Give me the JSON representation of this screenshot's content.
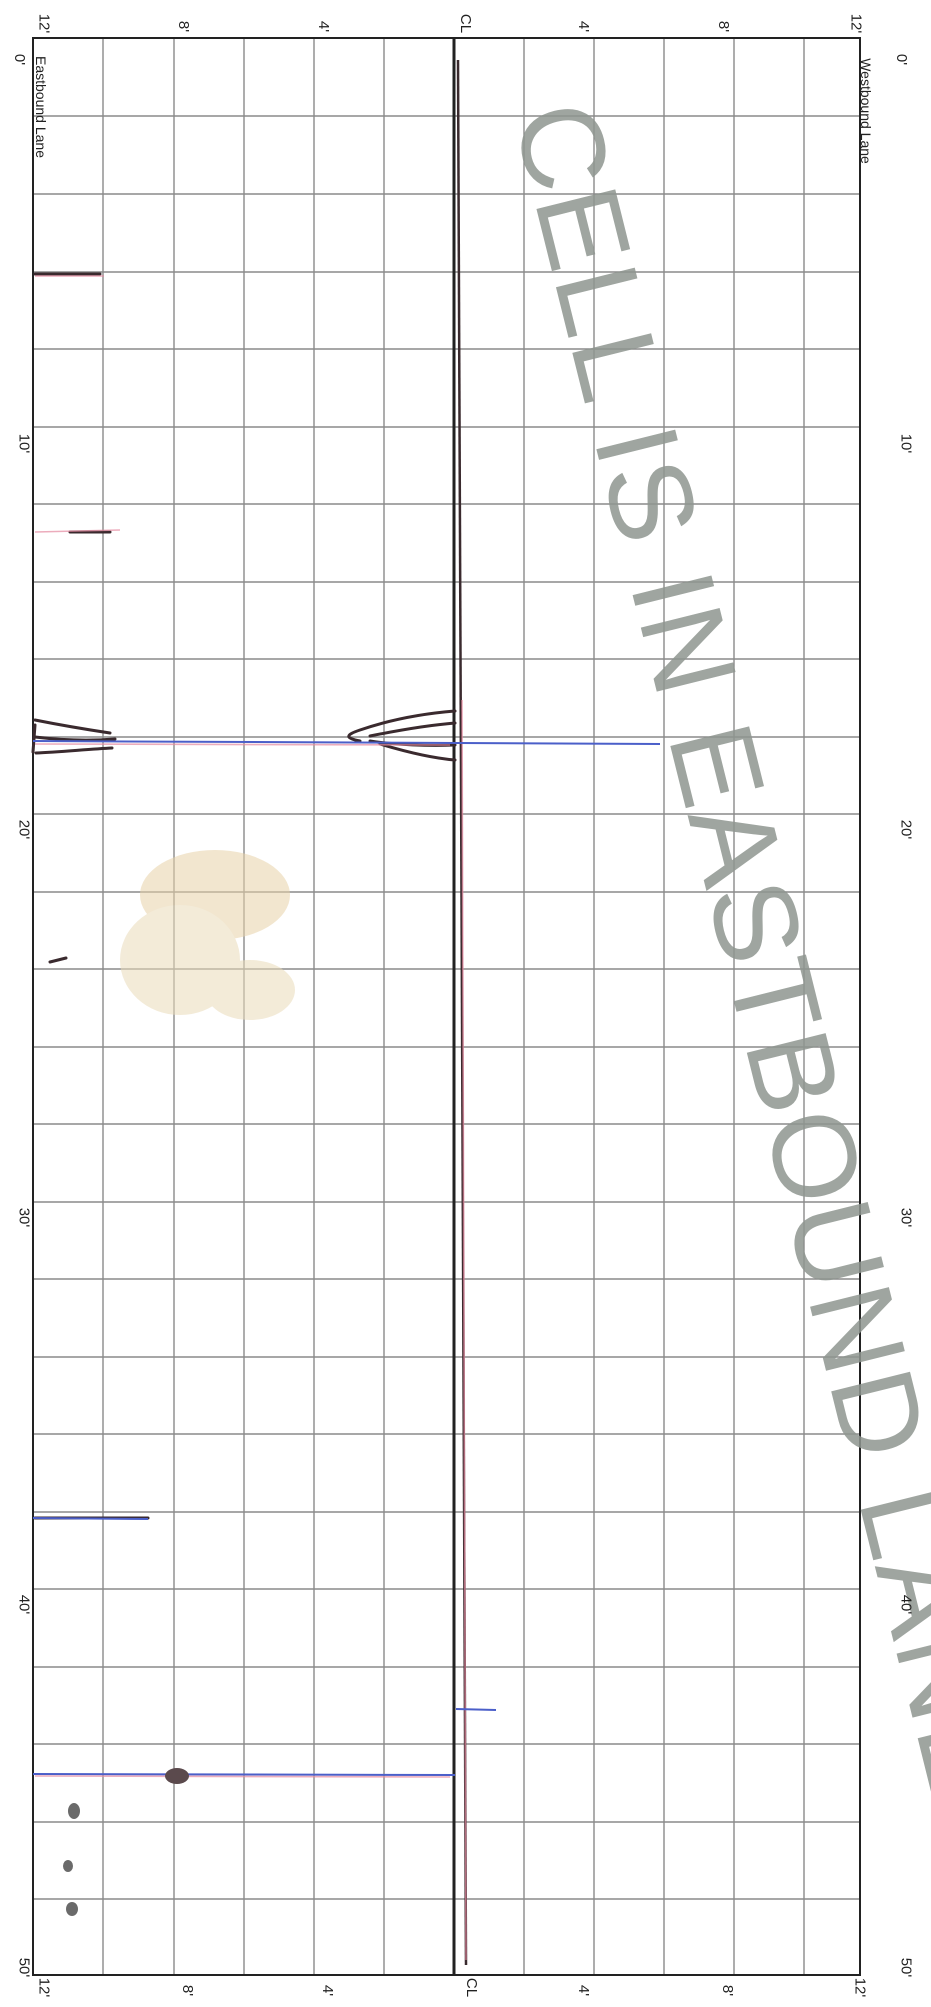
{
  "sheet": {
    "top_left_corner_label": "12'",
    "top_right_corner_label": "12'",
    "bottom_left_corner_label": "12'",
    "bottom_right_corner_label": "12'",
    "left_lane_label": "Eastbound Lane",
    "right_lane_label": "Westbound Lane",
    "centerline_top_label": "CL",
    "centerline_bottom_label": "CL",
    "stamp_text": "CELL IS IN EASTBOUND LANE",
    "colors": {
      "grid": "#8a8a8a",
      "ink": "#3a2a2e",
      "blue_pen": "#4b5fc9",
      "pink_pen": "#e58aa0",
      "stamp": "#8f9690"
    }
  },
  "offset_scale": {
    "top_left": [
      "8'",
      "4'"
    ],
    "top_right": [
      "4'",
      "8'"
    ],
    "bottom_left": [
      "8'",
      "4'"
    ],
    "bottom_right": [
      "4'",
      "8'"
    ]
  },
  "distance_scale": {
    "left": [
      "0'",
      "10'",
      "20'",
      "30'",
      "40'",
      "50'"
    ],
    "right": [
      "0'",
      "10'",
      "20'",
      "30'",
      "40'",
      "50'"
    ]
  }
}
